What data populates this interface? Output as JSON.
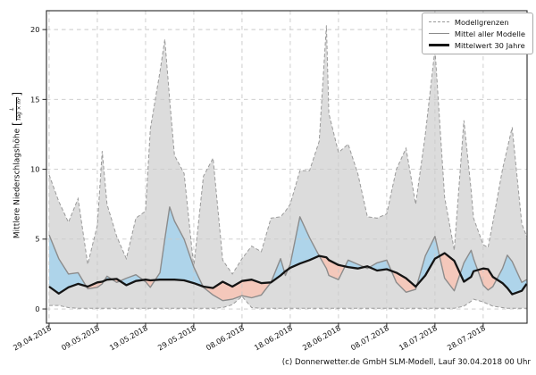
{
  "caption": "(c) Donnerwetter.de GmbH SLM-Modell, Lauf 30.04.2018 00 Uhr",
  "chart_data": {
    "type": "line",
    "title": "",
    "ylabel_prefix": "Mittlere Niederschlagshöhe",
    "bracket_open": "[",
    "bracket_close": "]",
    "unit_numerator": "L",
    "unit_denominator": "Tag × m²",
    "grid": true,
    "legend_position": "upper right",
    "legend": [
      {
        "label": "Modellgrenzen",
        "style": "dashed-gray"
      },
      {
        "label": "Mittel aller Modelle",
        "style": "solid-gray"
      },
      {
        "label": "Mittelwert 30 Jahre",
        "style": "solid-black-thick"
      }
    ],
    "x_is_days_after_first_date": true,
    "x_ticks": [
      {
        "day": 0,
        "label": "29.04.2018"
      },
      {
        "day": 10,
        "label": "09.05.2018"
      },
      {
        "day": 20,
        "label": "19.05.2018"
      },
      {
        "day": 30,
        "label": "29.05.2018"
      },
      {
        "day": 40,
        "label": "08.06.2018"
      },
      {
        "day": 50,
        "label": "18.06.2018"
      },
      {
        "day": 60,
        "label": "28.06.2018"
      },
      {
        "day": 70,
        "label": "08.07.2018"
      },
      {
        "day": 80,
        "label": "18.07.2018"
      },
      {
        "day": 90,
        "label": "28.07.2018"
      }
    ],
    "y_ticks": [
      0,
      5,
      10,
      15,
      20
    ],
    "xlim": [
      -0.55,
      99.1
    ],
    "ylim": [
      -1.02,
      21.35
    ],
    "days": [
      0,
      2,
      4,
      6,
      8,
      10,
      11,
      12,
      14,
      16,
      18,
      20,
      21,
      23,
      24,
      25,
      26,
      28,
      30,
      32,
      34,
      36,
      38,
      40,
      42,
      44,
      46,
      48,
      49,
      50,
      52,
      54,
      56,
      57.5,
      58,
      60,
      62,
      64,
      66,
      68,
      70,
      72,
      74,
      76,
      78,
      80,
      82,
      84,
      86,
      87.5,
      88,
      90,
      91,
      92,
      94,
      95,
      96,
      98,
      99
    ],
    "series": [
      {
        "name": "Modellgrenzen (obere Grenze)",
        "values": [
          9.6,
          7.7,
          6.2,
          7.9,
          3.2,
          6.0,
          11.3,
          7.5,
          5.2,
          3.6,
          6.5,
          7.0,
          12.9,
          17.0,
          19.3,
          15.0,
          11.0,
          9.7,
          3.0,
          9.5,
          10.8,
          3.5,
          2.5,
          3.6,
          4.5,
          4.1,
          6.5,
          6.6,
          7.0,
          7.5,
          9.9,
          9.9,
          12.0,
          20.3,
          14.0,
          11.2,
          11.8,
          9.7,
          6.6,
          6.5,
          6.8,
          10.0,
          11.5,
          7.5,
          12.5,
          18.6,
          8.0,
          4.2,
          13.5,
          8.5,
          6.5,
          4.6,
          4.4,
          6.2,
          10.0,
          11.5,
          13.0,
          6.1,
          5.2
        ]
      },
      {
        "name": "Modellgrenzen (untere Grenze)",
        "values": [
          0.25,
          0.25,
          0.1,
          0.05,
          0.05,
          0.05,
          0.05,
          0.05,
          0.05,
          0.05,
          0.05,
          0.05,
          0.05,
          0.05,
          0.05,
          0.05,
          0.05,
          0.05,
          0.05,
          0.05,
          0.05,
          0.1,
          0.3,
          0.9,
          0.1,
          0.05,
          0.05,
          0.05,
          0.05,
          0.05,
          0.05,
          0.05,
          0.05,
          0.05,
          0.05,
          0.05,
          0.05,
          0.05,
          0.05,
          0.05,
          0.05,
          0.05,
          0.05,
          0.05,
          0.05,
          0.05,
          0.05,
          0.05,
          0.2,
          0.55,
          0.7,
          0.5,
          0.35,
          0.2,
          0.1,
          0.05,
          0.05,
          0.05,
          0.05
        ]
      },
      {
        "name": "Mittel aller Modelle",
        "values": [
          5.3,
          3.6,
          2.5,
          2.6,
          1.45,
          1.55,
          1.8,
          2.35,
          1.9,
          2.2,
          2.45,
          1.95,
          1.55,
          2.6,
          5.0,
          7.3,
          6.3,
          5.0,
          3.0,
          1.55,
          1.0,
          0.6,
          0.7,
          0.95,
          0.8,
          1.0,
          1.9,
          3.6,
          2.4,
          3.2,
          6.6,
          5.1,
          3.8,
          2.9,
          2.4,
          2.1,
          3.5,
          3.2,
          2.9,
          3.3,
          3.5,
          1.9,
          1.2,
          1.4,
          3.8,
          5.2,
          2.2,
          1.3,
          3.3,
          4.2,
          3.6,
          1.7,
          1.35,
          1.6,
          2.9,
          3.85,
          3.4,
          1.9,
          2.1
        ]
      },
      {
        "name": "Mittelwert 30 Jahre",
        "values": [
          1.6,
          1.1,
          1.55,
          1.8,
          1.6,
          1.9,
          1.95,
          2.1,
          2.15,
          1.7,
          2.0,
          2.1,
          2.05,
          2.1,
          2.1,
          2.1,
          2.1,
          2.05,
          1.85,
          1.6,
          1.5,
          1.95,
          1.6,
          2.0,
          2.1,
          1.85,
          1.9,
          2.4,
          2.7,
          2.95,
          3.25,
          3.5,
          3.8,
          3.7,
          3.5,
          3.15,
          3.0,
          2.9,
          3.05,
          2.75,
          2.85,
          2.6,
          2.2,
          1.6,
          2.4,
          3.6,
          4.0,
          3.45,
          1.95,
          2.3,
          2.7,
          2.9,
          2.85,
          2.3,
          1.85,
          1.5,
          1.05,
          1.3,
          1.8
        ]
      }
    ],
    "colors": {
      "band_fill": "#dcdcdc",
      "above_fill": "#aed4ea",
      "below_fill": "#f4c8bb",
      "boundary_line": "#9a9a9a",
      "mean_line": "#8c8c8c",
      "mean30_line": "#141414",
      "grid_line": "#c9c9c9",
      "frame": "#262626"
    }
  }
}
